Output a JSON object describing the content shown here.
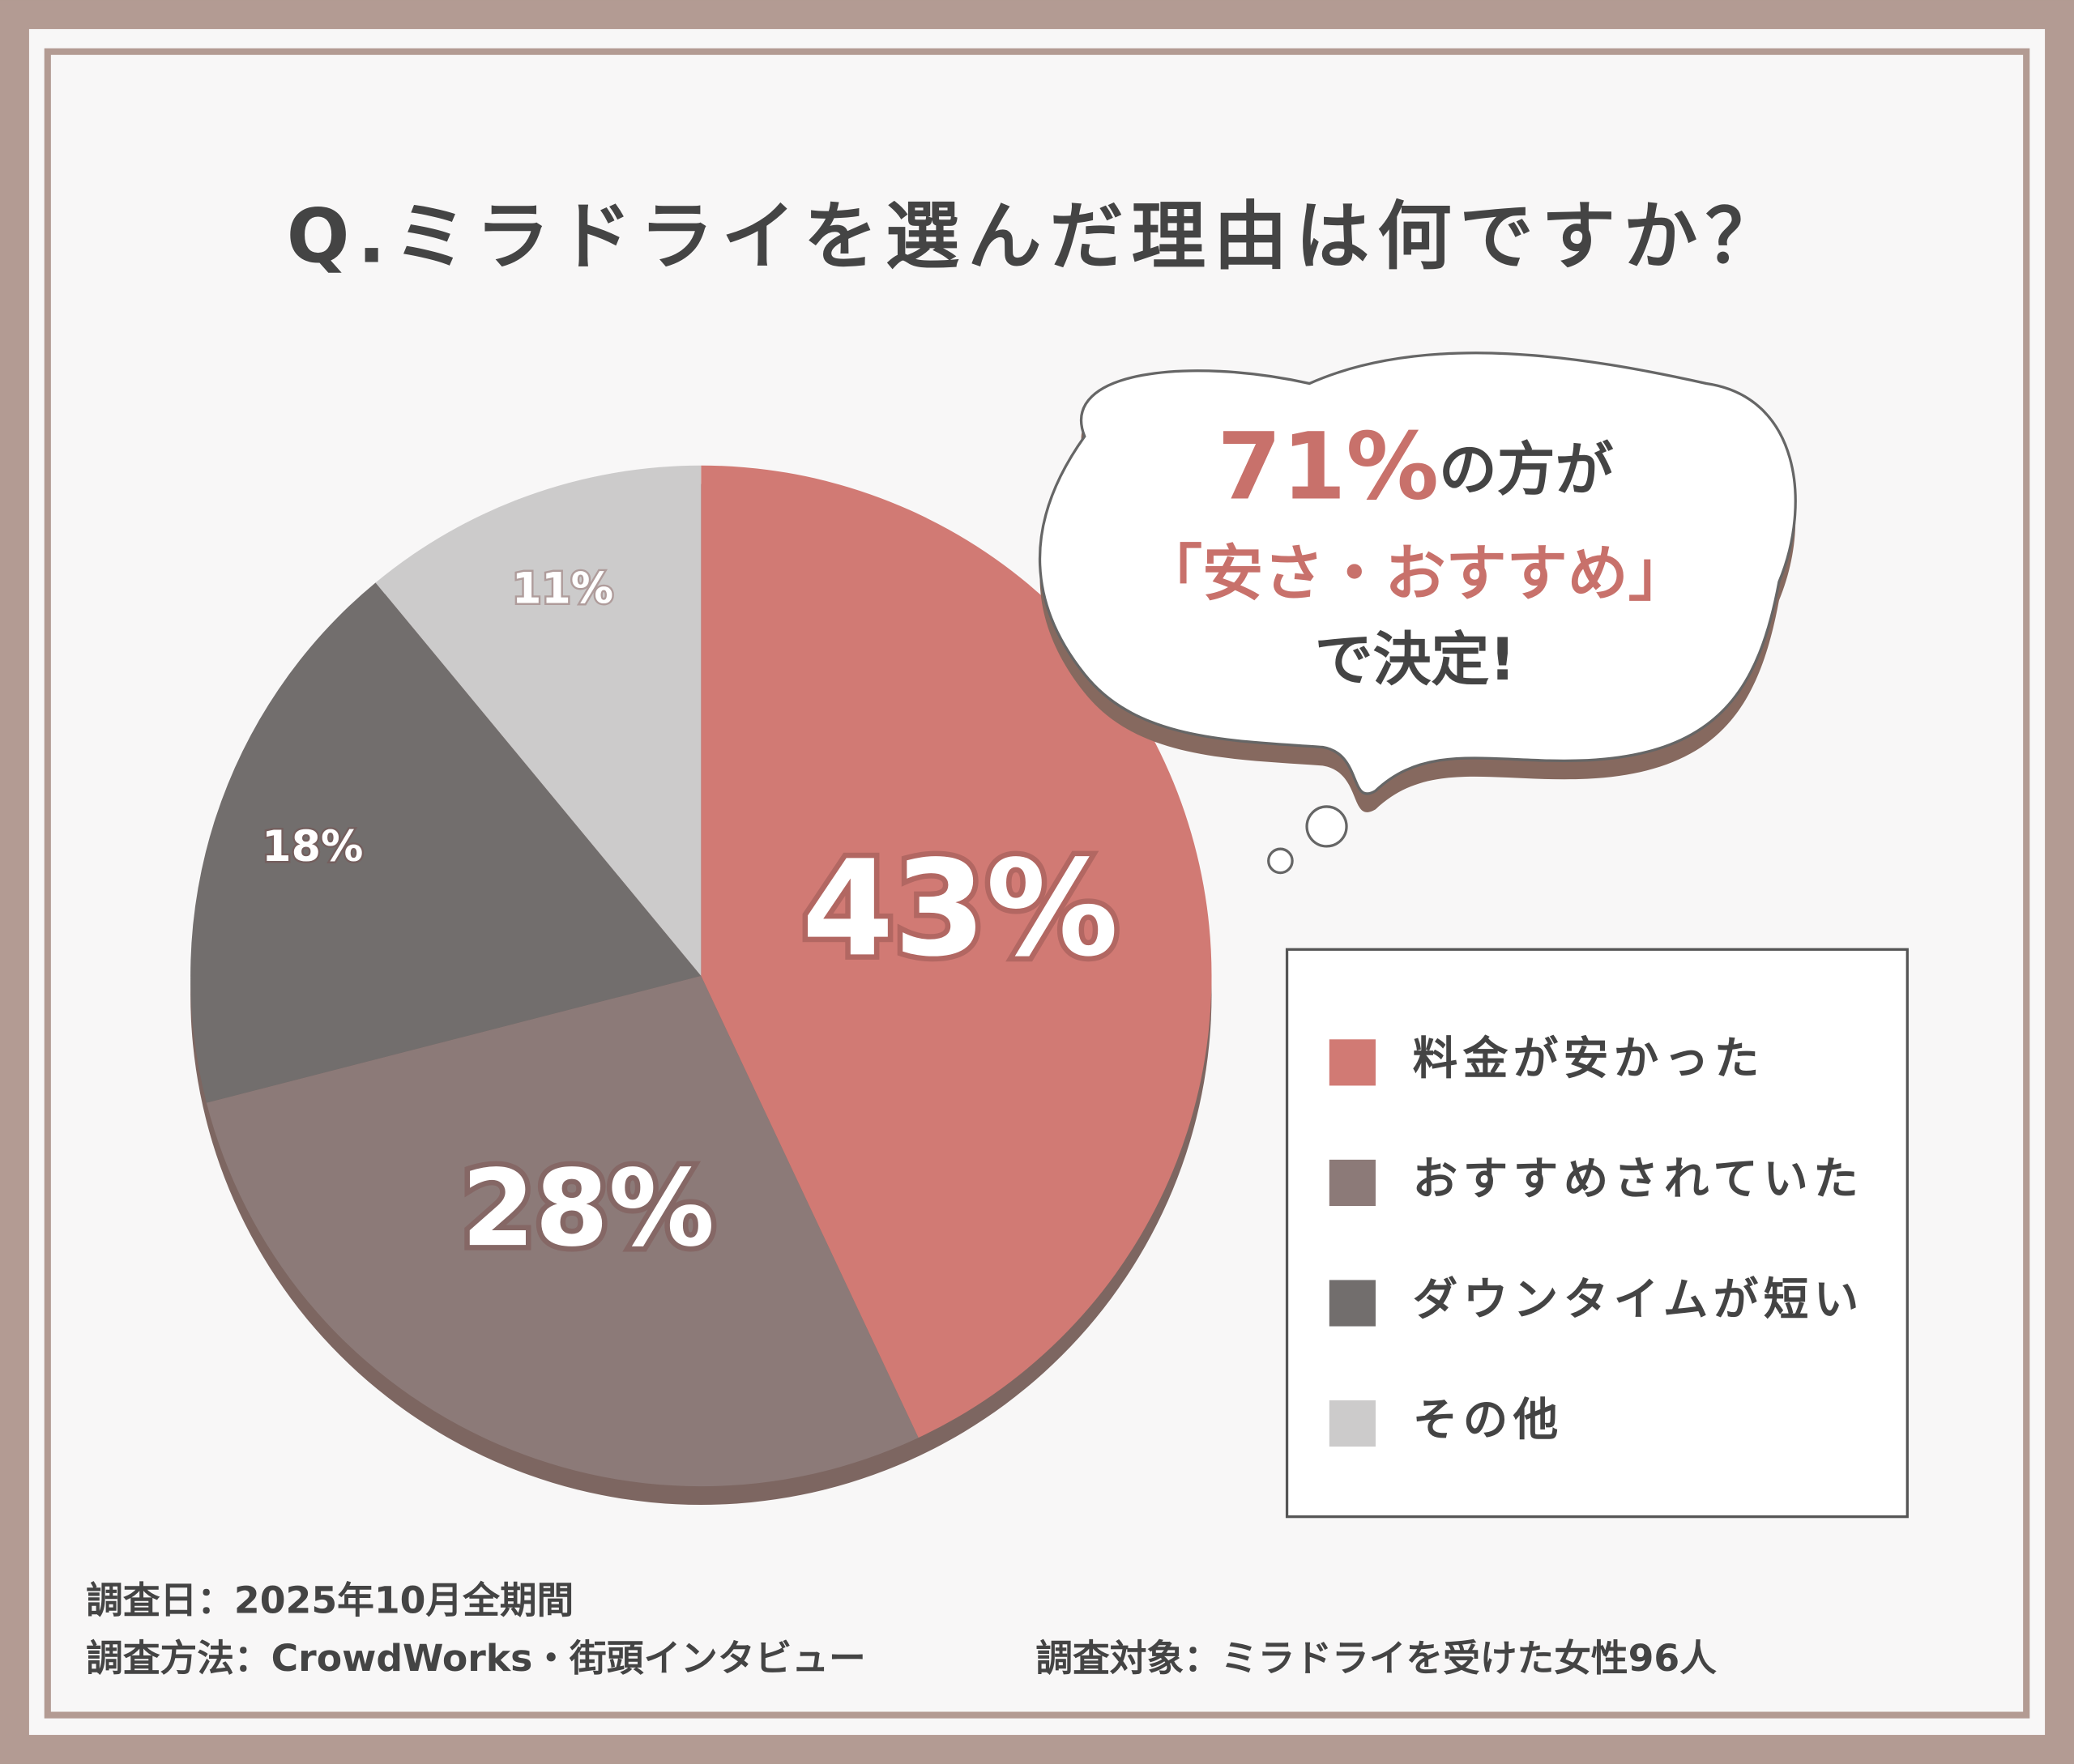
{
  "chart_data": {
    "type": "pie",
    "title": "Q.ミラドライを選んだ理由は何ですか？",
    "categories": [
      "料金が安かった",
      "おすすめされていた",
      "ダウンタイムが短い",
      "その他"
    ],
    "values": [
      43,
      28,
      18,
      11
    ],
    "value_labels": [
      "43%",
      "28%",
      "18%",
      "11%"
    ],
    "colors": [
      "#d17a74",
      "#8c7a78",
      "#726e6d",
      "#cccbcb"
    ],
    "legend": "right",
    "annotation": {
      "highlight": "71%",
      "line1_rest": "の方が",
      "line2": "「安さ・おすすめ」",
      "line3": "で決定!"
    },
    "notes": [
      "調査日：2025年10月全期間",
      "調査方法：CrowdWorks・街頭インタビュー",
      "調査対象：ミラドライを受けた女性96人"
    ]
  }
}
